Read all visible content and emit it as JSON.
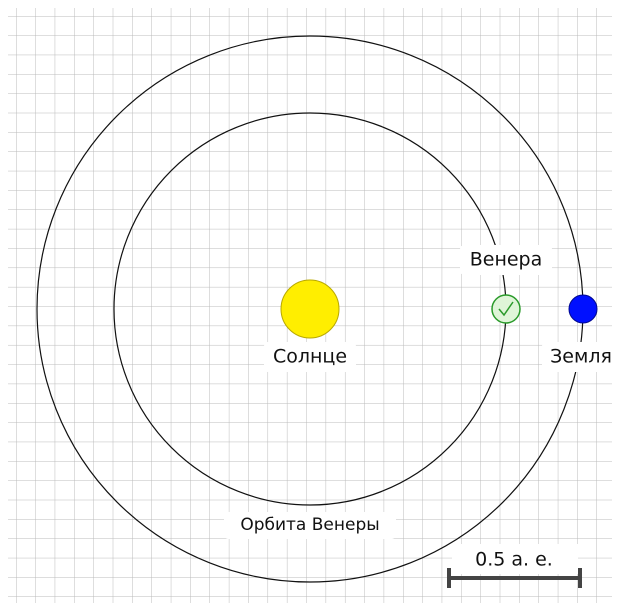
{
  "labels": {
    "venus": "Венера",
    "sun": "Солнце",
    "earth": "Земля",
    "venus_orbit": "Орбита Венеры",
    "scale": "0.5 а. е."
  }
}
